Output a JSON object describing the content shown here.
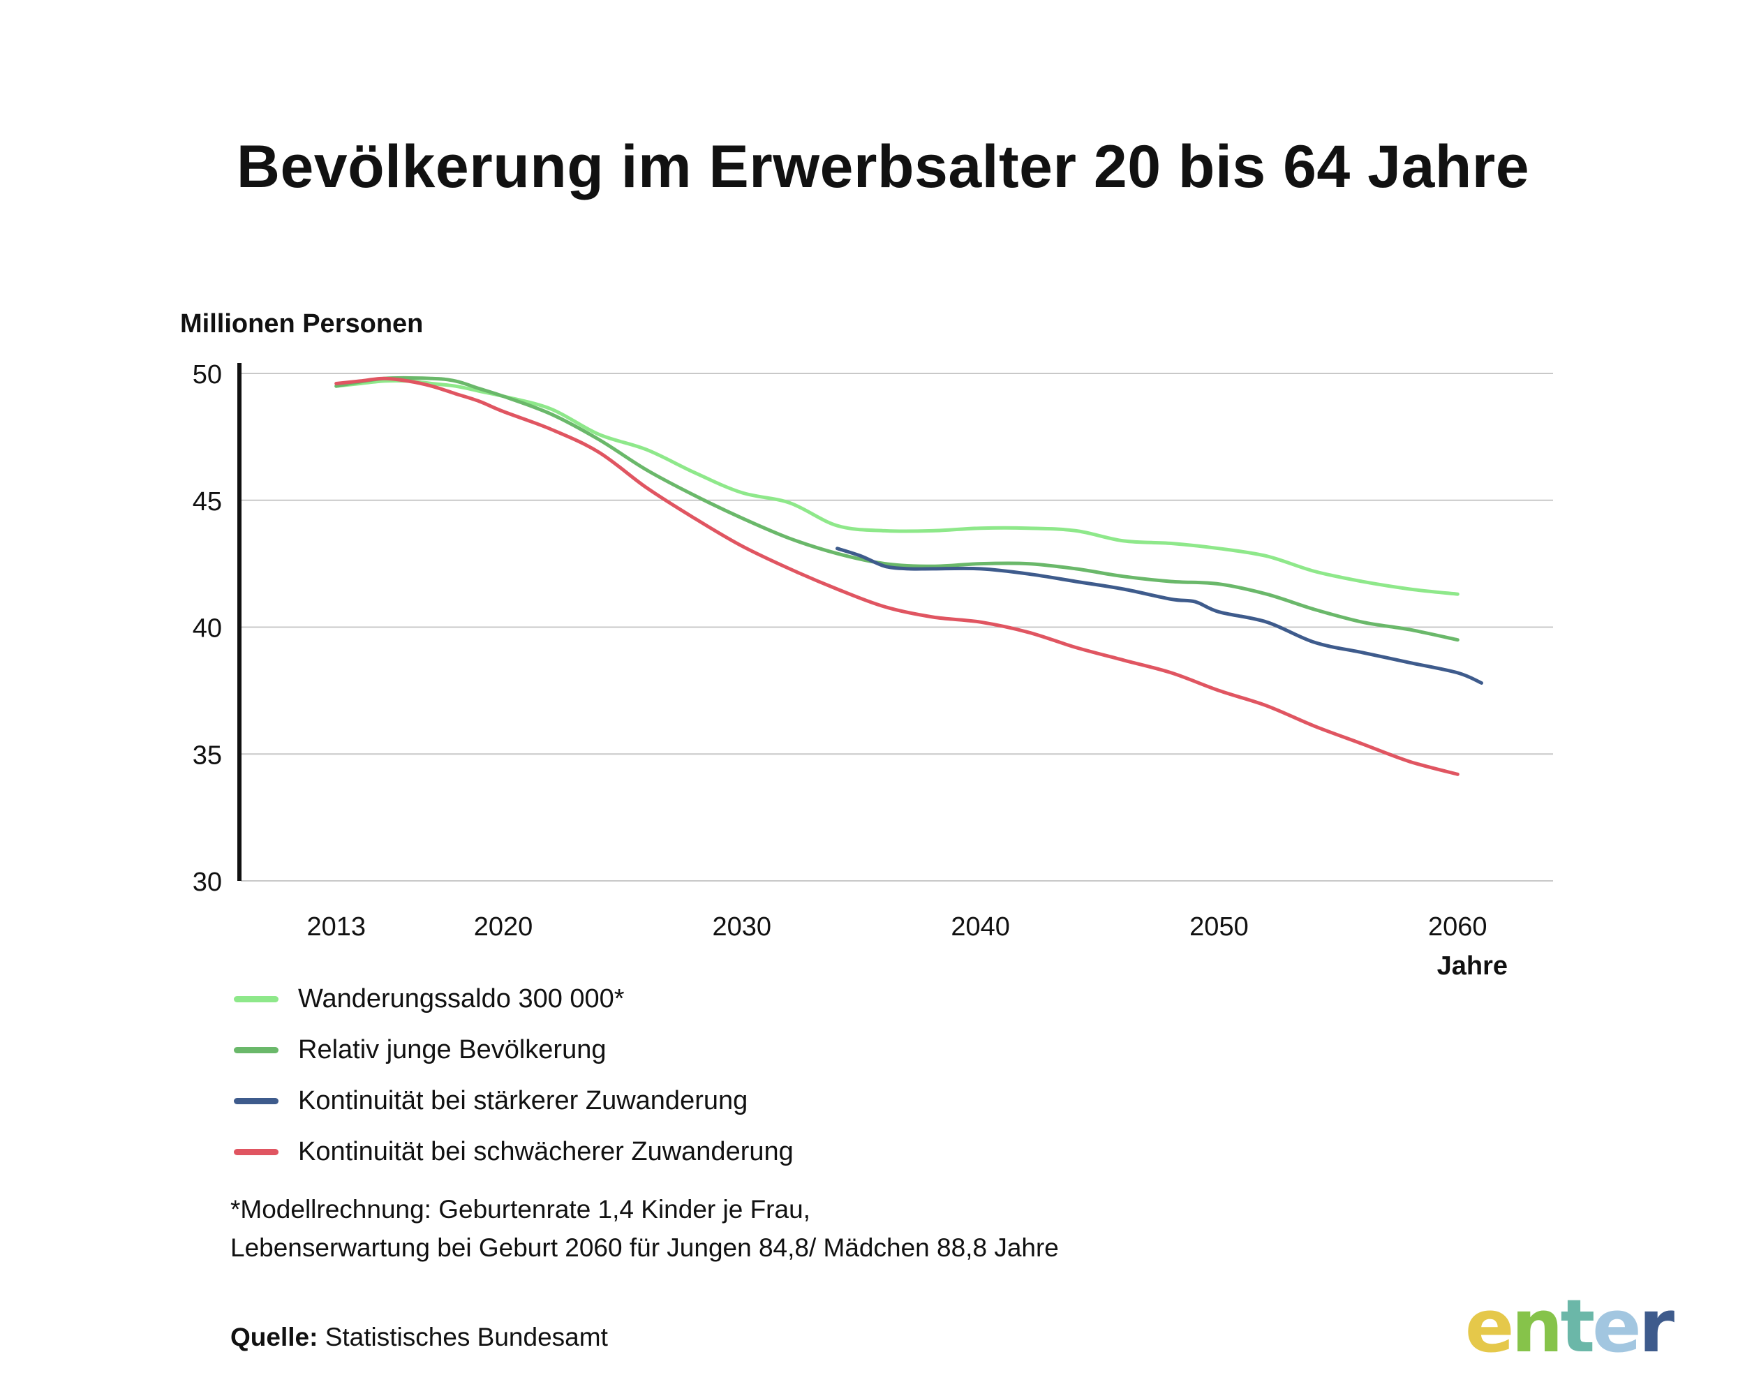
{
  "title": "Bevölkerung im Erwerbsalter 20 bis 64 Jahre",
  "chart_data": {
    "type": "line",
    "title": "Bevölkerung im Erwerbsalter 20 bis 64 Jahre",
    "ylabel": "Millionen Personen",
    "xlabel": "Jahre",
    "ylim": [
      30,
      50
    ],
    "xlim": [
      2009,
      2064
    ],
    "yticks": [
      30,
      35,
      40,
      45,
      50
    ],
    "xticks": [
      2013,
      2020,
      2030,
      2040,
      2050,
      2060
    ],
    "grid": true,
    "series": [
      {
        "name": "Wanderungssaldo 300 000*",
        "color": "#8EE88A",
        "x": [
          2013,
          2014,
          2015,
          2016,
          2017,
          2018,
          2019,
          2020,
          2022,
          2024,
          2026,
          2028,
          2030,
          2032,
          2034,
          2036,
          2038,
          2040,
          2042,
          2044,
          2046,
          2048,
          2050,
          2052,
          2054,
          2056,
          2058,
          2060
        ],
        "values": [
          49.5,
          49.6,
          49.7,
          49.7,
          49.6,
          49.5,
          49.3,
          49.1,
          48.6,
          47.6,
          47.0,
          46.1,
          45.3,
          44.9,
          44.0,
          43.8,
          43.8,
          43.9,
          43.9,
          43.8,
          43.4,
          43.3,
          43.1,
          42.8,
          42.2,
          41.8,
          41.5,
          41.3
        ]
      },
      {
        "name": "Relativ junge Bevölkerung",
        "color": "#6AB86A",
        "x": [
          2013,
          2015,
          2017,
          2018,
          2019,
          2020,
          2022,
          2024,
          2026,
          2028,
          2030,
          2032,
          2034,
          2036,
          2038,
          2040,
          2042,
          2044,
          2046,
          2048,
          2050,
          2052,
          2054,
          2056,
          2058,
          2060
        ],
        "values": [
          49.5,
          49.8,
          49.8,
          49.7,
          49.4,
          49.1,
          48.4,
          47.4,
          46.2,
          45.2,
          44.3,
          43.5,
          42.9,
          42.5,
          42.4,
          42.5,
          42.5,
          42.3,
          42.0,
          41.8,
          41.7,
          41.3,
          40.7,
          40.2,
          39.9,
          39.5
        ]
      },
      {
        "name": "Kontinuität bei stärkerer Zuwanderung",
        "color": "#3E5B8C",
        "x": [
          2034,
          2035,
          2036,
          2037,
          2038,
          2040,
          2042,
          2044,
          2046,
          2048,
          2049,
          2050,
          2052,
          2054,
          2056,
          2058,
          2060,
          2061
        ],
        "values": [
          43.1,
          42.8,
          42.4,
          42.3,
          42.3,
          42.3,
          42.1,
          41.8,
          41.5,
          41.1,
          41.0,
          40.6,
          40.2,
          39.4,
          39.0,
          38.6,
          38.2,
          37.8
        ]
      },
      {
        "name": "Kontinuität bei schwächerer Zuwanderung",
        "color": "#E05561",
        "x": [
          2013,
          2014,
          2015,
          2016,
          2017,
          2018,
          2019,
          2020,
          2022,
          2024,
          2026,
          2028,
          2030,
          2032,
          2034,
          2036,
          2038,
          2040,
          2042,
          2044,
          2046,
          2048,
          2050,
          2052,
          2054,
          2056,
          2058,
          2060
        ],
        "values": [
          49.6,
          49.7,
          49.8,
          49.7,
          49.5,
          49.2,
          48.9,
          48.5,
          47.8,
          46.9,
          45.5,
          44.3,
          43.2,
          42.3,
          41.5,
          40.8,
          40.4,
          40.2,
          39.8,
          39.2,
          38.7,
          38.2,
          37.5,
          36.9,
          36.1,
          35.4,
          34.7,
          34.2
        ]
      }
    ]
  },
  "footnote": {
    "line1": "*Modellrechnung: Geburtenrate 1,4 Kinder je Frau,",
    "line2": "Lebenserwartung bei Geburt 2060 für Jungen 84,8/ Mädchen 88,8 Jahre"
  },
  "source": {
    "label": "Quelle:",
    "text": "Statistisches Bundesamt"
  },
  "logo": {
    "text": "enter",
    "colors": [
      "#E5C84A",
      "#86C34A",
      "#6BB7A8",
      "#A2C6E0",
      "#3E5B8C"
    ]
  }
}
